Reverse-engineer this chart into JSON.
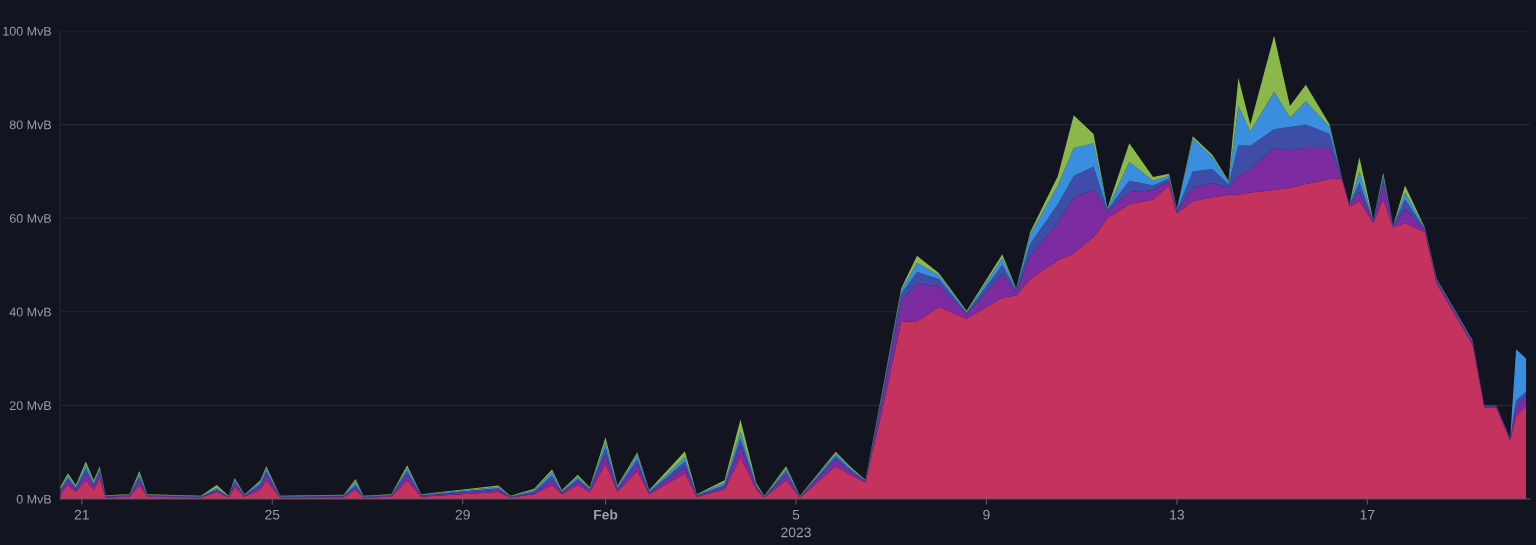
{
  "chart_data": {
    "type": "area",
    "stacked": true,
    "xlabel": "2023",
    "grid": "y",
    "x": [
      "2023-01-20T13:00",
      "2023-01-20T17:00",
      "2023-01-20T21:00",
      "2023-01-21T02:00",
      "2023-01-21T06:00",
      "2023-01-21T09:00",
      "2023-01-21T12:00",
      "2023-01-22T00:00",
      "2023-01-22T05:00",
      "2023-01-22T09:00",
      "2023-01-23T12:00",
      "2023-01-23T20:00",
      "2023-01-24T02:00",
      "2023-01-24T05:00",
      "2023-01-24T10:00",
      "2023-01-24T18:00",
      "2023-01-24T21:00",
      "2023-01-25T04:00",
      "2023-01-26T12:00",
      "2023-01-26T18:00",
      "2023-01-26T22:00",
      "2023-01-27T12:00",
      "2023-01-27T20:00",
      "2023-01-28T03:00",
      "2023-01-29T18:00",
      "2023-01-30T00:00",
      "2023-01-30T12:00",
      "2023-01-30T21:00",
      "2023-01-31T02:00",
      "2023-01-31T10:00",
      "2023-01-31T16:00",
      "2023-02-01T00:00",
      "2023-02-01T06:00",
      "2023-02-01T16:00",
      "2023-02-01T22:00",
      "2023-02-02T16:00",
      "2023-02-02T22:00",
      "2023-02-03T12:00",
      "2023-02-03T20:00",
      "2023-02-04T04:00",
      "2023-02-04T08:00",
      "2023-02-04T19:00",
      "2023-02-05T02:00",
      "2023-02-05T20:00",
      "2023-02-06T04:00",
      "2023-02-06T11:00",
      "2023-02-06T20:00",
      "2023-02-07T05:00",
      "2023-02-07T13:00",
      "2023-02-08T00:00",
      "2023-02-08T14:00",
      "2023-02-09T08:00",
      "2023-02-09T15:00",
      "2023-02-09T22:00",
      "2023-02-10T12:00",
      "2023-02-10T20:00",
      "2023-02-11T06:00",
      "2023-02-11T13:00",
      "2023-02-12T00:00",
      "2023-02-12T12:00",
      "2023-02-12T20:00",
      "2023-02-13T00:00",
      "2023-02-13T08:00",
      "2023-02-13T18:00",
      "2023-02-14T02:00",
      "2023-02-14T07:00",
      "2023-02-14T13:00",
      "2023-02-15T01:00",
      "2023-02-15T09:00",
      "2023-02-15T17:00",
      "2023-02-16T05:00",
      "2023-02-16T11:00",
      "2023-02-16T15:00",
      "2023-02-16T20:00",
      "2023-02-17T03:00",
      "2023-02-17T08:00",
      "2023-02-17T13:00",
      "2023-02-17T19:00",
      "2023-02-18T05:00",
      "2023-02-18T11:00",
      "2023-02-19T05:00",
      "2023-02-19T11:00",
      "2023-02-19T17:00",
      "2023-02-20T00:00",
      "2023-02-20T03:00",
      "2023-02-20T08:00"
    ],
    "series": [
      {
        "color": "#c4325e",
        "values": [
          1,
          3,
          1.5,
          4,
          2,
          4.5,
          0.3,
          0.5,
          3,
          0.5,
          0.3,
          1.5,
          0.3,
          2.5,
          0.5,
          2,
          4,
          0.3,
          0.4,
          2,
          0.3,
          0.5,
          4,
          0.5,
          1.5,
          0.3,
          1,
          3,
          1,
          3,
          1.5,
          7.5,
          1.5,
          6,
          1,
          5.5,
          0.5,
          2,
          9,
          2,
          0.3,
          4,
          0.3,
          7,
          5,
          3.5,
          20,
          37.8,
          38,
          41,
          38.5,
          43,
          43.5,
          47,
          51,
          52.5,
          56,
          60,
          63,
          64,
          67,
          61,
          63.7,
          64.5,
          65,
          65,
          65.5,
          66,
          66.5,
          67.3,
          68.4,
          68.5,
          62.5,
          63.7,
          59,
          64,
          58,
          59,
          57,
          46,
          33,
          19.5,
          19.5,
          12.5,
          17.7,
          20
        ]
      },
      {
        "color": "#7d2ba0",
        "values": [
          0.5,
          1,
          0.5,
          1.5,
          0.7,
          1,
          0.2,
          0.2,
          1,
          0.2,
          0.1,
          0.3,
          0.1,
          0.8,
          0.2,
          0.7,
          1.2,
          0.1,
          0.2,
          0.5,
          0.1,
          0.2,
          1.2,
          0.2,
          0.5,
          0.1,
          0.3,
          1,
          0.3,
          0.8,
          0.4,
          2,
          0.5,
          1.5,
          0.3,
          1.5,
          0.2,
          0.5,
          2.5,
          0.5,
          0.1,
          1.2,
          0.1,
          1.5,
          0.7,
          0.3,
          2.5,
          4.5,
          8,
          4.5,
          1,
          5,
          0.8,
          5,
          8,
          12,
          10,
          1.5,
          2.6,
          2,
          1,
          0.5,
          2.8,
          3,
          1.5,
          4,
          5,
          9,
          8,
          7.7,
          6.6,
          0.3,
          0.3,
          1.9,
          0.4,
          3.5,
          0.3,
          3,
          0.5,
          0.5,
          0.5,
          0.3,
          0.3,
          0.3,
          2.3,
          2
        ]
      },
      {
        "color": "#3e4ea8",
        "values": [
          0.3,
          0.5,
          0.3,
          1,
          0.5,
          0.7,
          0.1,
          0.1,
          0.8,
          0.1,
          0.1,
          0.3,
          0.1,
          0.5,
          0.1,
          0.5,
          0.8,
          0.1,
          0.1,
          0.5,
          0.1,
          0.1,
          0.8,
          0.1,
          0.3,
          0.1,
          0.3,
          1,
          0.2,
          0.5,
          0.2,
          1.5,
          0.3,
          1,
          0.2,
          1,
          0.1,
          0.5,
          1.5,
          0.3,
          0.1,
          0.8,
          0.1,
          0.7,
          0.4,
          0.1,
          0.8,
          1.5,
          2.5,
          1.5,
          0.3,
          2,
          0.3,
          2.5,
          4,
          4.5,
          5,
          0.3,
          2.4,
          1,
          0.5,
          0.2,
          3.5,
          3,
          0.7,
          6.6,
          5,
          4,
          5,
          5,
          3,
          0.1,
          0.1,
          2,
          0.1,
          1,
          0.1,
          2,
          0.2,
          0.2,
          0.2,
          0.1,
          0.1,
          0.1,
          1,
          1
        ]
      },
      {
        "color": "#3a8ee0",
        "values": [
          0.3,
          0.5,
          0.3,
          0.8,
          0.4,
          0.5,
          0.1,
          0.1,
          0.6,
          0.1,
          0.1,
          0.3,
          0.1,
          0.4,
          0.1,
          0.5,
          0.6,
          0.1,
          0.1,
          0.8,
          0.1,
          0.1,
          0.6,
          0.1,
          0.3,
          0.1,
          0.3,
          0.8,
          0.2,
          0.5,
          0.2,
          1.2,
          0.3,
          1,
          0.2,
          1,
          0.1,
          0.5,
          1.5,
          0.3,
          0.1,
          0.5,
          0.1,
          0.5,
          0.3,
          0.1,
          0.5,
          0.8,
          2,
          0.8,
          0.2,
          1.5,
          0.2,
          2,
          4,
          6,
          5,
          0.2,
          4,
          1,
          0.5,
          0.2,
          7,
          2.5,
          0.5,
          8.4,
          3,
          8,
          2,
          5,
          1.5,
          0.1,
          0.1,
          2.4,
          0.1,
          0.7,
          0.1,
          1.5,
          0.2,
          0.2,
          0.2,
          0.1,
          0.1,
          0.1,
          11,
          7
        ]
      },
      {
        "color": "#8ab84a",
        "values": [
          0.4,
          0.5,
          0.4,
          0.7,
          0.4,
          0.3,
          0.1,
          0.1,
          0.6,
          0.1,
          0.1,
          0.6,
          0.1,
          0.3,
          0.1,
          0.3,
          0.4,
          0.1,
          0.1,
          0.5,
          0.1,
          0.1,
          0.6,
          0.1,
          0.3,
          0.1,
          0.3,
          0.5,
          0.2,
          0.4,
          0.2,
          1,
          0.3,
          0.5,
          0.2,
          1.2,
          0.1,
          0.5,
          2.5,
          0.3,
          0.1,
          0.5,
          0.1,
          0.4,
          0.3,
          0.1,
          0.4,
          0.4,
          1.5,
          0.5,
          0.2,
          0.8,
          0.2,
          0.5,
          2,
          7,
          2,
          0.2,
          4,
          0.8,
          0.5,
          0.1,
          0.5,
          0.5,
          0.3,
          6,
          1.5,
          12,
          2.5,
          3.5,
          0.5,
          0,
          0,
          3,
          0,
          0.5,
          0,
          1.5,
          0.1,
          0.1,
          0.1,
          0,
          0,
          0,
          0,
          0
        ]
      }
    ],
    "xlim": [
      "2023-01-20T13:00",
      "2023-02-20T10:00"
    ],
    "xticks": [
      {
        "value": "2023-01-21",
        "label": "21"
      },
      {
        "value": "2023-01-25",
        "label": "25"
      },
      {
        "value": "2023-01-29",
        "label": "29"
      },
      {
        "value": "2023-02-01",
        "label": "Feb"
      },
      {
        "value": "2023-02-05",
        "label": "5"
      },
      {
        "value": "2023-02-09",
        "label": "9"
      },
      {
        "value": "2023-02-13",
        "label": "13"
      },
      {
        "value": "2023-02-17",
        "label": "17"
      }
    ],
    "ylim": [
      0,
      100
    ],
    "yticks": [
      {
        "value": 0,
        "label": "0 MvB"
      },
      {
        "value": 20,
        "label": "20 MvB"
      },
      {
        "value": 40,
        "label": "40 MvB"
      },
      {
        "value": 60,
        "label": "60 MvB"
      },
      {
        "value": 80,
        "label": "80 MvB"
      },
      {
        "value": 100,
        "label": "100 MvB"
      }
    ]
  }
}
